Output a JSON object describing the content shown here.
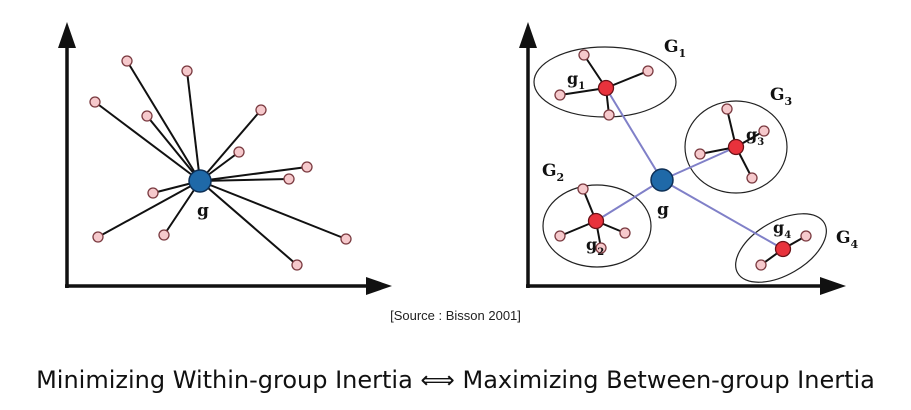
{
  "colors": {
    "point_fill": "#f6c9cc",
    "point_stroke": "#7a3a40",
    "centroid_fill": "#1f69a8",
    "group_centroid_fill": "#e8323c",
    "between_line": "#8080c8",
    "axis": "#111111"
  },
  "left_panel": {
    "centroid_label": "g"
  },
  "right_panel": {
    "centroid_label": "g",
    "groups": [
      {
        "name_main": "G",
        "name_sub": "1",
        "centroid_main": "g",
        "centroid_sub": "1"
      },
      {
        "name_main": "G",
        "name_sub": "2",
        "centroid_main": "g",
        "centroid_sub": "2"
      },
      {
        "name_main": "G",
        "name_sub": "3",
        "centroid_main": "g",
        "centroid_sub": "3"
      },
      {
        "name_main": "G",
        "name_sub": "4",
        "centroid_main": "g",
        "centroid_sub": "4"
      }
    ]
  },
  "source": "[Source : Bisson 2001]",
  "caption": {
    "left": "Minimizing Within-group Inertia",
    "symbol": "⟺",
    "right": "Maximizing Between-group Inertia"
  }
}
